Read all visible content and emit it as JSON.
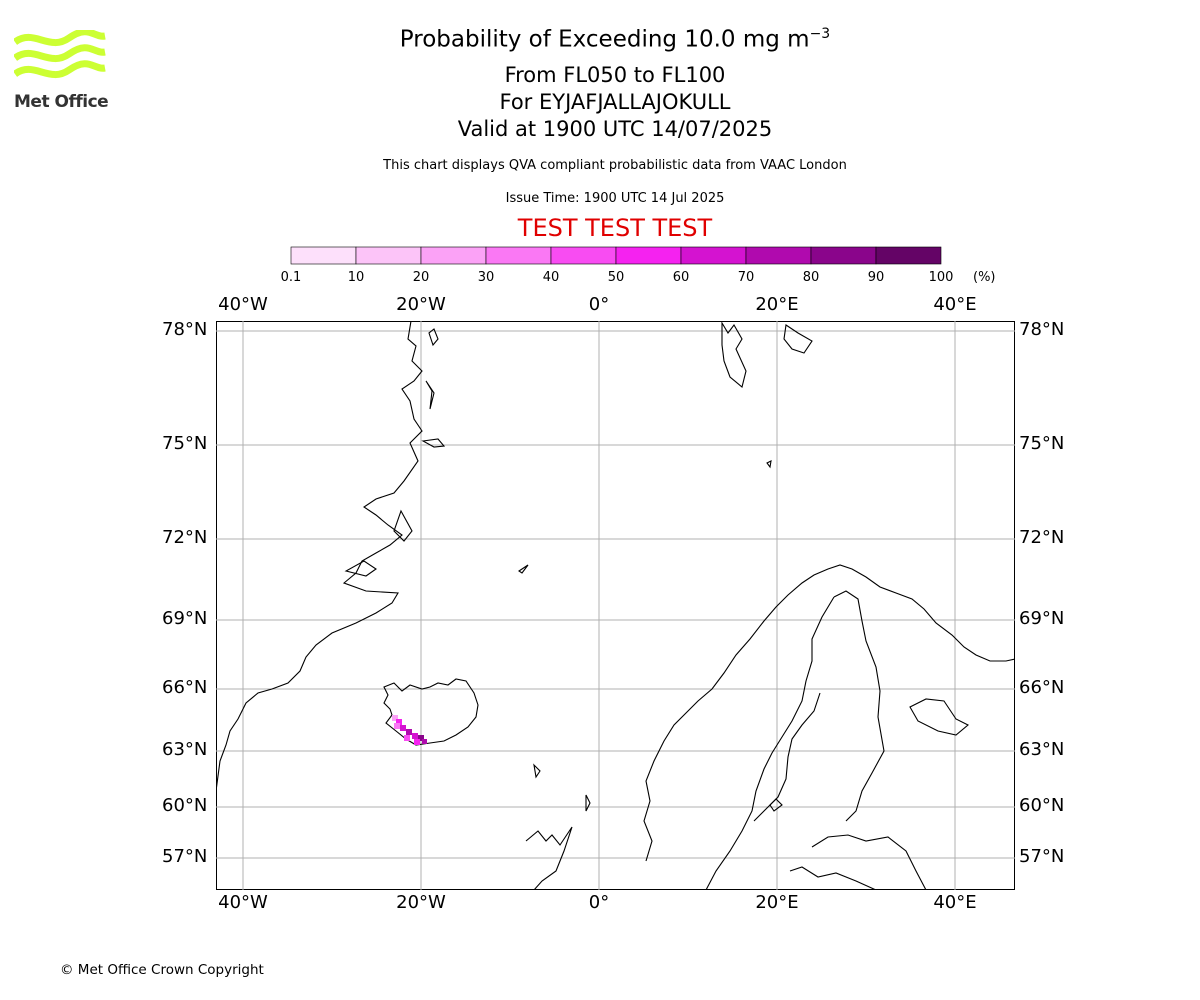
{
  "logo": {
    "text": "Met Office",
    "color": "#ccff33"
  },
  "title": {
    "main": "Probability of Exceeding 10.0 mg m",
    "exponent": "−3",
    "line2": "From FL050 to FL100",
    "line3": "For EYJAFJALLAJOKULL",
    "line4": "Valid at 1900 UTC 14/07/2025"
  },
  "subtitle": "This chart displays QVA compliant probabilistic data from VAAC London",
  "issue_time": "Issue Time: 1900 UTC 14 Jul 2025",
  "test_banner": "TEST TEST TEST",
  "test_color": "#e00000",
  "colorbar": {
    "ticks": [
      "0.1",
      "10",
      "20",
      "30",
      "40",
      "50",
      "60",
      "70",
      "80",
      "90",
      "100"
    ],
    "unit": "(%)",
    "colors": [
      "#fde0fb",
      "#fcc4f8",
      "#fba2f6",
      "#fa78f4",
      "#f84cf2",
      "#f522f0",
      "#d413d0",
      "#b00aae",
      "#8a058b",
      "#640466"
    ]
  },
  "map": {
    "lon_labels": [
      "40°W",
      "20°W",
      "0°",
      "20°E",
      "40°E"
    ],
    "lat_labels": [
      "78°N",
      "75°N",
      "72°N",
      "69°N",
      "66°N",
      "63°N",
      "60°N",
      "57°N"
    ],
    "volcano": "EYJAFJALLAJOKULL"
  },
  "copyright": "© Met Office Crown Copyright"
}
